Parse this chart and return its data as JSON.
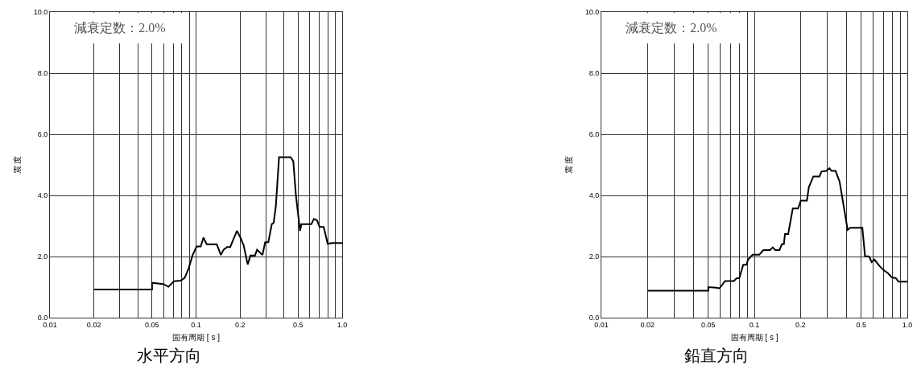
{
  "chart_data": [
    {
      "type": "line",
      "title": "水平方向",
      "xlabel": "固有周期 [ s ]",
      "ylabel": "震 度",
      "annotations": [
        "減衰定数：2.0%"
      ],
      "log": "x",
      "grid": true,
      "marker": "none",
      "line_style": "solid",
      "xlim": [
        0.01,
        1
      ],
      "ylim": [
        0,
        10
      ],
      "xticks": [
        {
          "value": 0.01,
          "label": "0.01"
        },
        {
          "value": 0.02,
          "label": "0.02"
        },
        {
          "value": 0.03,
          "label": null
        },
        {
          "value": 0.04,
          "label": null
        },
        {
          "value": 0.05,
          "label": "0.05"
        },
        {
          "value": 0.06,
          "label": null
        },
        {
          "value": 0.07,
          "label": null
        },
        {
          "value": 0.08,
          "label": null
        },
        {
          "value": 0.09,
          "label": null
        },
        {
          "value": 0.1,
          "label": "0.1"
        },
        {
          "value": 0.2,
          "label": "0.2"
        },
        {
          "value": 0.3,
          "label": null
        },
        {
          "value": 0.4,
          "label": null
        },
        {
          "value": 0.5,
          "label": "0.5"
        },
        {
          "value": 0.6,
          "label": null
        },
        {
          "value": 0.7,
          "label": null
        },
        {
          "value": 0.8,
          "label": null
        },
        {
          "value": 0.9,
          "label": null
        },
        {
          "value": 1,
          "label": "1.0"
        }
      ],
      "yticks": [
        {
          "value": 0,
          "label": "0.0"
        },
        {
          "value": 2,
          "label": "2.0"
        },
        {
          "value": 4,
          "label": "4.0"
        },
        {
          "value": 6,
          "label": "6.0"
        },
        {
          "value": 8,
          "label": "8.0"
        },
        {
          "value": 10,
          "label": "10.0"
        }
      ],
      "series": [
        {
          "color": "#000000",
          "x": [
            0.02,
            0.05,
            0.05,
            0.0596,
            0.0648,
            0.0705,
            0.0784,
            0.0836,
            0.089,
            0.0948,
            0.101,
            0.1077,
            0.1123,
            0.1182,
            0.1387,
            0.1479,
            0.1542,
            0.163,
            0.1714,
            0.179,
            0.1905,
            0.2014,
            0.2118,
            0.2258,
            0.2355,
            0.253,
            0.2617,
            0.2848,
            0.2972,
            0.3126,
            0.33,
            0.34,
            0.352,
            0.37,
            0.444,
            0.463,
            0.483,
            0.515,
            0.526,
            0.615,
            0.641,
            0.672,
            0.701,
            0.747,
            0.796,
            0.855,
            1.0
          ],
          "values": [
            0.92,
            0.92,
            1.14,
            1.1,
            1.01,
            1.19,
            1.21,
            1.3,
            1.61,
            2.05,
            2.33,
            2.33,
            2.62,
            2.4,
            2.4,
            2.05,
            2.22,
            2.31,
            2.31,
            2.53,
            2.84,
            2.62,
            2.36,
            1.74,
            2.03,
            2.03,
            2.22,
            2.05,
            2.47,
            2.47,
            3.06,
            3.1,
            3.67,
            5.25,
            5.25,
            5.12,
            3.98,
            2.84,
            3.06,
            3.06,
            3.23,
            3.19,
            2.97,
            2.97,
            2.42,
            2.44,
            2.44
          ]
        }
      ]
    },
    {
      "type": "line",
      "title": "鉛直方向",
      "xlabel": "固有周期 [ s ]",
      "ylabel": "震 度",
      "annotations": [
        "減衰定数：2.0%"
      ],
      "log": "x",
      "grid": true,
      "marker": "none",
      "line_style": "solid",
      "xlim": [
        0.01,
        1
      ],
      "ylim": [
        0,
        10
      ],
      "xticks": [
        {
          "value": 0.01,
          "label": "0.01"
        },
        {
          "value": 0.02,
          "label": "0.02"
        },
        {
          "value": 0.03,
          "label": null
        },
        {
          "value": 0.04,
          "label": null
        },
        {
          "value": 0.05,
          "label": "0.05"
        },
        {
          "value": 0.06,
          "label": null
        },
        {
          "value": 0.07,
          "label": null
        },
        {
          "value": 0.08,
          "label": null
        },
        {
          "value": 0.09,
          "label": null
        },
        {
          "value": 0.1,
          "label": "0.1"
        },
        {
          "value": 0.2,
          "label": "0.2"
        },
        {
          "value": 0.3,
          "label": null
        },
        {
          "value": 0.4,
          "label": null
        },
        {
          "value": 0.5,
          "label": "0.5"
        },
        {
          "value": 0.6,
          "label": null
        },
        {
          "value": 0.7,
          "label": null
        },
        {
          "value": 0.8,
          "label": null
        },
        {
          "value": 0.9,
          "label": null
        },
        {
          "value": 1,
          "label": "1.0"
        }
      ],
      "yticks": [
        {
          "value": 0,
          "label": "0.0"
        },
        {
          "value": 2,
          "label": "2.0"
        },
        {
          "value": 4,
          "label": "4.0"
        },
        {
          "value": 6,
          "label": "6.0"
        },
        {
          "value": 8,
          "label": "8.0"
        },
        {
          "value": 10,
          "label": "10.0"
        }
      ],
      "series": [
        {
          "color": "#000000",
          "x": [
            0.02,
            0.05,
            0.05,
            0.0561,
            0.0593,
            0.0643,
            0.0735,
            0.0765,
            0.0797,
            0.0846,
            0.0888,
            0.091,
            0.0974,
            0.1078,
            0.1145,
            0.1266,
            0.1318,
            0.1372,
            0.1458,
            0.1517,
            0.156,
            0.1586,
            0.1665,
            0.1783,
            0.1932,
            0.2012,
            0.2207,
            0.227,
            0.2431,
            0.2667,
            0.2744,
            0.2951,
            0.3096,
            0.3197,
            0.3396,
            0.3609,
            0.3834,
            0.4073,
            0.424,
            0.5082,
            0.5291,
            0.5623,
            0.5848,
            0.6094,
            0.6605,
            0.7015,
            0.7453,
            0.7915,
            0.841,
            0.8756,
            1.0
          ],
          "values": [
            0.88,
            0.88,
            1.0,
            0.98,
            0.96,
            1.2,
            1.2,
            1.29,
            1.29,
            1.73,
            1.73,
            1.9,
            2.06,
            2.06,
            2.21,
            2.21,
            2.3,
            2.21,
            2.21,
            2.41,
            2.41,
            2.74,
            2.74,
            3.57,
            3.57,
            3.83,
            3.83,
            4.27,
            4.62,
            4.62,
            4.78,
            4.8,
            4.89,
            4.8,
            4.8,
            4.45,
            3.66,
            2.87,
            2.94,
            2.94,
            2.01,
            2.0,
            1.82,
            1.9,
            1.68,
            1.55,
            1.46,
            1.32,
            1.29,
            1.18,
            1.18
          ]
        }
      ]
    }
  ]
}
